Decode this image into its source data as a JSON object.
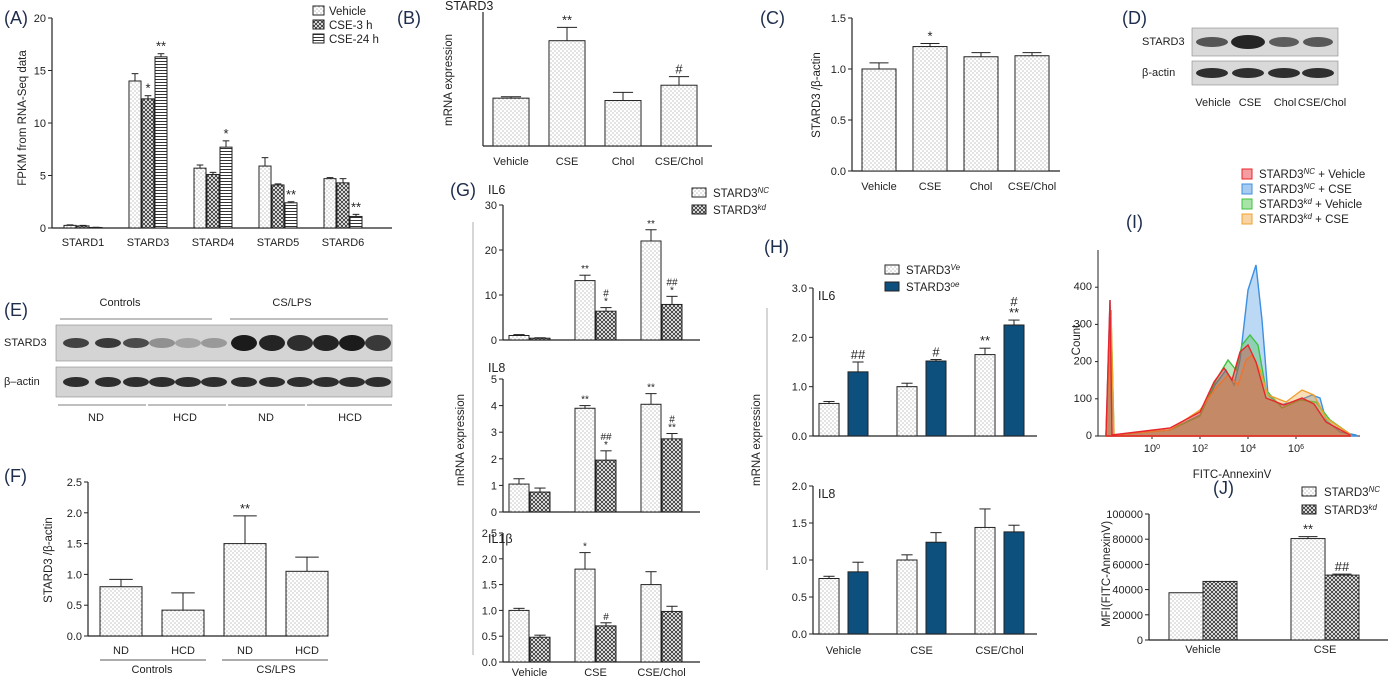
{
  "panels": [
    {
      "id": "A",
      "letter": "(A)"
    },
    {
      "id": "B",
      "letter": "(B)"
    },
    {
      "id": "C",
      "letter": "(C)"
    },
    {
      "id": "D",
      "letter": "(D)"
    },
    {
      "id": "E",
      "letter": "(E)"
    },
    {
      "id": "F",
      "letter": "(F)"
    },
    {
      "id": "G",
      "letter": "(G)"
    },
    {
      "id": "H",
      "letter": "(H)"
    },
    {
      "id": "I",
      "letter": "(I)"
    },
    {
      "id": "J",
      "letter": "(J)"
    }
  ],
  "colors": {
    "axis": "#222222",
    "dark_blue": "#0d4f7d",
    "hist_red": "#e8262c",
    "hist_blue": "#3d8fe0",
    "hist_green": "#3fc23f",
    "hist_orange": "#f0a030",
    "letter": "#1f2d4d"
  },
  "chart_data": [
    {
      "id": "A",
      "type": "bar",
      "title": "",
      "ylabel": "FPKM from RNA-Seq data",
      "xlabel": "",
      "categories": [
        "STARD1",
        "STARD3",
        "STARD4",
        "STARD5",
        "STARD6"
      ],
      "ylim": [
        0,
        20
      ],
      "yticks": [
        0,
        5,
        10,
        15,
        20
      ],
      "series": [
        {
          "name": "Vehicle",
          "pattern": "dots",
          "values": [
            0.25,
            14.0,
            5.7,
            5.9,
            4.7
          ],
          "errors": [
            0.05,
            0.7,
            0.3,
            0.8,
            0.1
          ],
          "sig": [
            "",
            "",
            "",
            "",
            ""
          ]
        },
        {
          "name": "CSE-3 h",
          "pattern": "cross",
          "values": [
            0.2,
            12.3,
            5.1,
            4.1,
            4.3
          ],
          "errors": [
            0.05,
            0.3,
            0.2,
            0.1,
            0.4
          ],
          "sig": [
            "",
            "*",
            "",
            "",
            ""
          ]
        },
        {
          "name": "CSE-24 h",
          "pattern": "hstripe",
          "values": [
            0.05,
            16.3,
            7.7,
            2.4,
            1.1
          ],
          "errors": [
            0.02,
            0.3,
            0.6,
            0.1,
            0.2
          ],
          "sig": [
            "",
            "**",
            "*",
            "**",
            "**"
          ]
        }
      ]
    },
    {
      "id": "B",
      "type": "bar",
      "title": "STARD3",
      "ylabel": "mRNA expression",
      "xlabel": "",
      "categories": [
        "Vehicle",
        "CSE",
        "Chol",
        "CSE/Chol"
      ],
      "ylim": [
        0,
        2.8
      ],
      "yticks": [],
      "series": [
        {
          "name": "",
          "pattern": "dots",
          "values": [
            1.0,
            2.2,
            0.95,
            1.27
          ],
          "errors": [
            0.03,
            0.28,
            0.17,
            0.18
          ],
          "sig": [
            "",
            "**",
            "",
            "#"
          ]
        }
      ]
    },
    {
      "id": "C",
      "type": "bar",
      "title": "",
      "ylabel": "STARD3 /β-actin",
      "xlabel": "",
      "categories": [
        "Vehicle",
        "CSE",
        "Chol",
        "CSE/Chol"
      ],
      "ylim": [
        0,
        1.5
      ],
      "yticks": [
        0.0,
        0.5,
        1.0,
        1.5
      ],
      "series": [
        {
          "name": "",
          "pattern": "dots",
          "values": [
            1.0,
            1.22,
            1.12,
            1.13
          ],
          "errors": [
            0.06,
            0.03,
            0.04,
            0.03
          ],
          "sig": [
            "",
            "*",
            "",
            ""
          ]
        }
      ]
    },
    {
      "id": "F",
      "type": "bar",
      "title": "",
      "ylabel": "STARD3 /β-actin",
      "xlabel": "",
      "categories": [
        "ND",
        "HCD",
        "ND",
        "HCD"
      ],
      "groups": [
        "Controls",
        "CS/LPS"
      ],
      "ylim": [
        0,
        2.5
      ],
      "yticks": [
        0.0,
        0.5,
        1.0,
        1.5,
        2.0,
        2.5
      ],
      "series": [
        {
          "name": "",
          "pattern": "dots",
          "values": [
            0.8,
            0.42,
            1.5,
            1.05
          ],
          "errors": [
            0.12,
            0.28,
            0.45,
            0.23
          ],
          "sig": [
            "",
            "",
            "**",
            ""
          ]
        }
      ]
    },
    {
      "id": "G_IL6",
      "type": "bar",
      "title": "IL6",
      "ylabel": "mRNA expression",
      "categories": [
        "Vehicle",
        "CSE",
        "CSE/Chol"
      ],
      "ylim": [
        0,
        30
      ],
      "yticks": [
        0,
        10,
        20,
        30
      ],
      "series": [
        {
          "name": "STARD3NC",
          "pattern": "dots",
          "values": [
            1.0,
            13.2,
            22.0
          ],
          "errors": [
            0.2,
            1.2,
            2.5
          ],
          "sig": [
            "",
            "**",
            "**"
          ]
        },
        {
          "name": "STARD3kd",
          "pattern": "cross",
          "values": [
            0.4,
            6.4,
            7.9
          ],
          "errors": [
            0.1,
            0.8,
            1.8
          ],
          "sig": [
            "",
            "#\n*",
            "##\n*"
          ]
        }
      ]
    },
    {
      "id": "G_IL8",
      "type": "bar",
      "title": "IL8",
      "ylabel": "",
      "categories": [
        "Vehicle",
        "CSE",
        "CSE/Chol"
      ],
      "ylim": [
        0,
        5
      ],
      "yticks": [
        0,
        1,
        2,
        3,
        4,
        5
      ],
      "series": [
        {
          "name": "STARD3NC",
          "pattern": "dots",
          "values": [
            1.05,
            3.9,
            4.05
          ],
          "errors": [
            0.2,
            0.1,
            0.4
          ],
          "sig": [
            "",
            "**",
            "**"
          ]
        },
        {
          "name": "STARD3kd",
          "pattern": "cross",
          "values": [
            0.75,
            1.95,
            2.75
          ],
          "errors": [
            0.15,
            0.35,
            0.2
          ],
          "sig": [
            "",
            "##\n*",
            "#\n**"
          ]
        }
      ]
    },
    {
      "id": "G_IL1b",
      "type": "bar",
      "title": "IL1β",
      "ylabel": "",
      "categories": [
        "Vehicle",
        "CSE",
        "CSE/Chol"
      ],
      "ylim": [
        0,
        2.5
      ],
      "yticks": [
        0.0,
        0.5,
        1.0,
        1.5,
        2.0,
        2.5
      ],
      "series": [
        {
          "name": "STARD3NC",
          "pattern": "dots",
          "values": [
            1.0,
            1.8,
            1.5
          ],
          "errors": [
            0.04,
            0.32,
            0.25
          ],
          "sig": [
            "",
            "*",
            ""
          ]
        },
        {
          "name": "STARD3kd",
          "pattern": "cross",
          "values": [
            0.48,
            0.7,
            0.98
          ],
          "errors": [
            0.04,
            0.06,
            0.1
          ],
          "sig": [
            "",
            "#",
            ""
          ]
        }
      ]
    },
    {
      "id": "H_IL6",
      "type": "bar",
      "title": "IL6",
      "ylabel": "mRNA expression",
      "categories": [
        "Vehicle",
        "CSE",
        "CSE/Chol"
      ],
      "ylim": [
        0,
        3.0
      ],
      "yticks": [
        0.0,
        1.0,
        2.0,
        3.0
      ],
      "series": [
        {
          "name": "STARD3Ve",
          "pattern": "dots",
          "values": [
            0.66,
            1.0,
            1.65
          ],
          "errors": [
            0.04,
            0.07,
            0.13
          ],
          "sig": [
            "",
            "",
            "**"
          ]
        },
        {
          "name": "STARD3oe",
          "pattern": "solid",
          "values": [
            1.3,
            1.52,
            2.25
          ],
          "errors": [
            0.2,
            0.03,
            0.1
          ],
          "sig": [
            "##",
            "#",
            "#\n**"
          ]
        }
      ]
    },
    {
      "id": "H_IL8",
      "type": "bar",
      "title": "IL8",
      "ylabel": "",
      "categories": [
        "Vehicle",
        "CSE",
        "CSE/Chol"
      ],
      "ylim": [
        0,
        2.0
      ],
      "yticks": [
        0.0,
        0.5,
        1.0,
        1.5,
        2.0
      ],
      "series": [
        {
          "name": "STARD3Ve",
          "pattern": "dots",
          "values": [
            0.75,
            1.0,
            1.44
          ],
          "errors": [
            0.03,
            0.07,
            0.25
          ],
          "sig": [
            "",
            "",
            ""
          ]
        },
        {
          "name": "STARD3oe",
          "pattern": "solid",
          "values": [
            0.84,
            1.24,
            1.38
          ],
          "errors": [
            0.13,
            0.13,
            0.09
          ],
          "sig": [
            "",
            "",
            ""
          ]
        }
      ]
    },
    {
      "id": "I",
      "type": "area",
      "title": "",
      "ylabel": "Count",
      "xlabel": "FITC-AnnexinV",
      "xscale": "log",
      "xticks": [
        "10^0",
        "10^2",
        "10^4",
        "10^6"
      ],
      "ylim": [
        0,
        500
      ],
      "yticks": [
        0,
        100,
        200,
        300,
        400
      ],
      "series": [
        {
          "name": "STARD3NC + Vehicle",
          "color": "#e8262c"
        },
        {
          "name": "STARD3NC + CSE",
          "color": "#3d8fe0"
        },
        {
          "name": "STARD3kd + Vehicle",
          "color": "#3fc23f"
        },
        {
          "name": "STARD3kd + CSE",
          "color": "#f0a030"
        }
      ]
    },
    {
      "id": "J",
      "type": "bar",
      "title": "",
      "ylabel": "MFI(FITC-AnnexinV)",
      "categories": [
        "Vehicle",
        "CSE"
      ],
      "ylim": [
        0,
        100000
      ],
      "yticks": [
        0,
        20000,
        40000,
        60000,
        80000,
        100000
      ],
      "series": [
        {
          "name": "STARD3NC",
          "pattern": "dots",
          "values": [
            37500,
            80500
          ],
          "errors": [
            0,
            1500
          ],
          "sig": [
            "",
            "**"
          ]
        },
        {
          "name": "STARD3kd",
          "pattern": "cross",
          "values": [
            46500,
            51500
          ],
          "errors": [
            0,
            800
          ],
          "sig": [
            "",
            "##"
          ]
        }
      ]
    }
  ],
  "legends": {
    "A": [
      "Vehicle",
      "CSE-3 h",
      "CSE-24 h"
    ],
    "G": [
      {
        "base": "STARD3",
        "sup": "NC"
      },
      {
        "base": "STARD3",
        "sup": "kd"
      }
    ],
    "H": [
      {
        "base": "STARD3",
        "sup": "Ve"
      },
      {
        "base": "STARD3",
        "sup": "oe"
      }
    ],
    "I": [
      {
        "base": "STARD3",
        "sup": "NC",
        "rest": " + Vehicle"
      },
      {
        "base": "STARD3",
        "sup": "NC",
        "rest": " + CSE"
      },
      {
        "base": "STARD3",
        "sup": "kd",
        "rest": " + Vehicle"
      },
      {
        "base": "STARD3",
        "sup": "kd",
        "rest": " + CSE"
      }
    ],
    "J": [
      {
        "base": "STARD3",
        "sup": "NC"
      },
      {
        "base": "STARD3",
        "sup": "kd"
      }
    ]
  },
  "blot_D": {
    "rows": [
      "STARD3",
      "β-actin"
    ],
    "lanes": [
      "Vehicle",
      "CSE",
      "Chol",
      "CSE/Chol"
    ]
  },
  "blot_E": {
    "top_groups": [
      "Controls",
      "CS/LPS"
    ],
    "rows": [
      "STARD3",
      "β–actin"
    ],
    "bottom_groups": [
      "ND",
      "HCD",
      "ND",
      "HCD"
    ]
  },
  "labels": {
    "G_ylabel": "mRNA expression",
    "H_ylabel": "mRNA expression",
    "I_xlabel": "FITC-AnnexinV",
    "I_ylabel": "Count"
  }
}
